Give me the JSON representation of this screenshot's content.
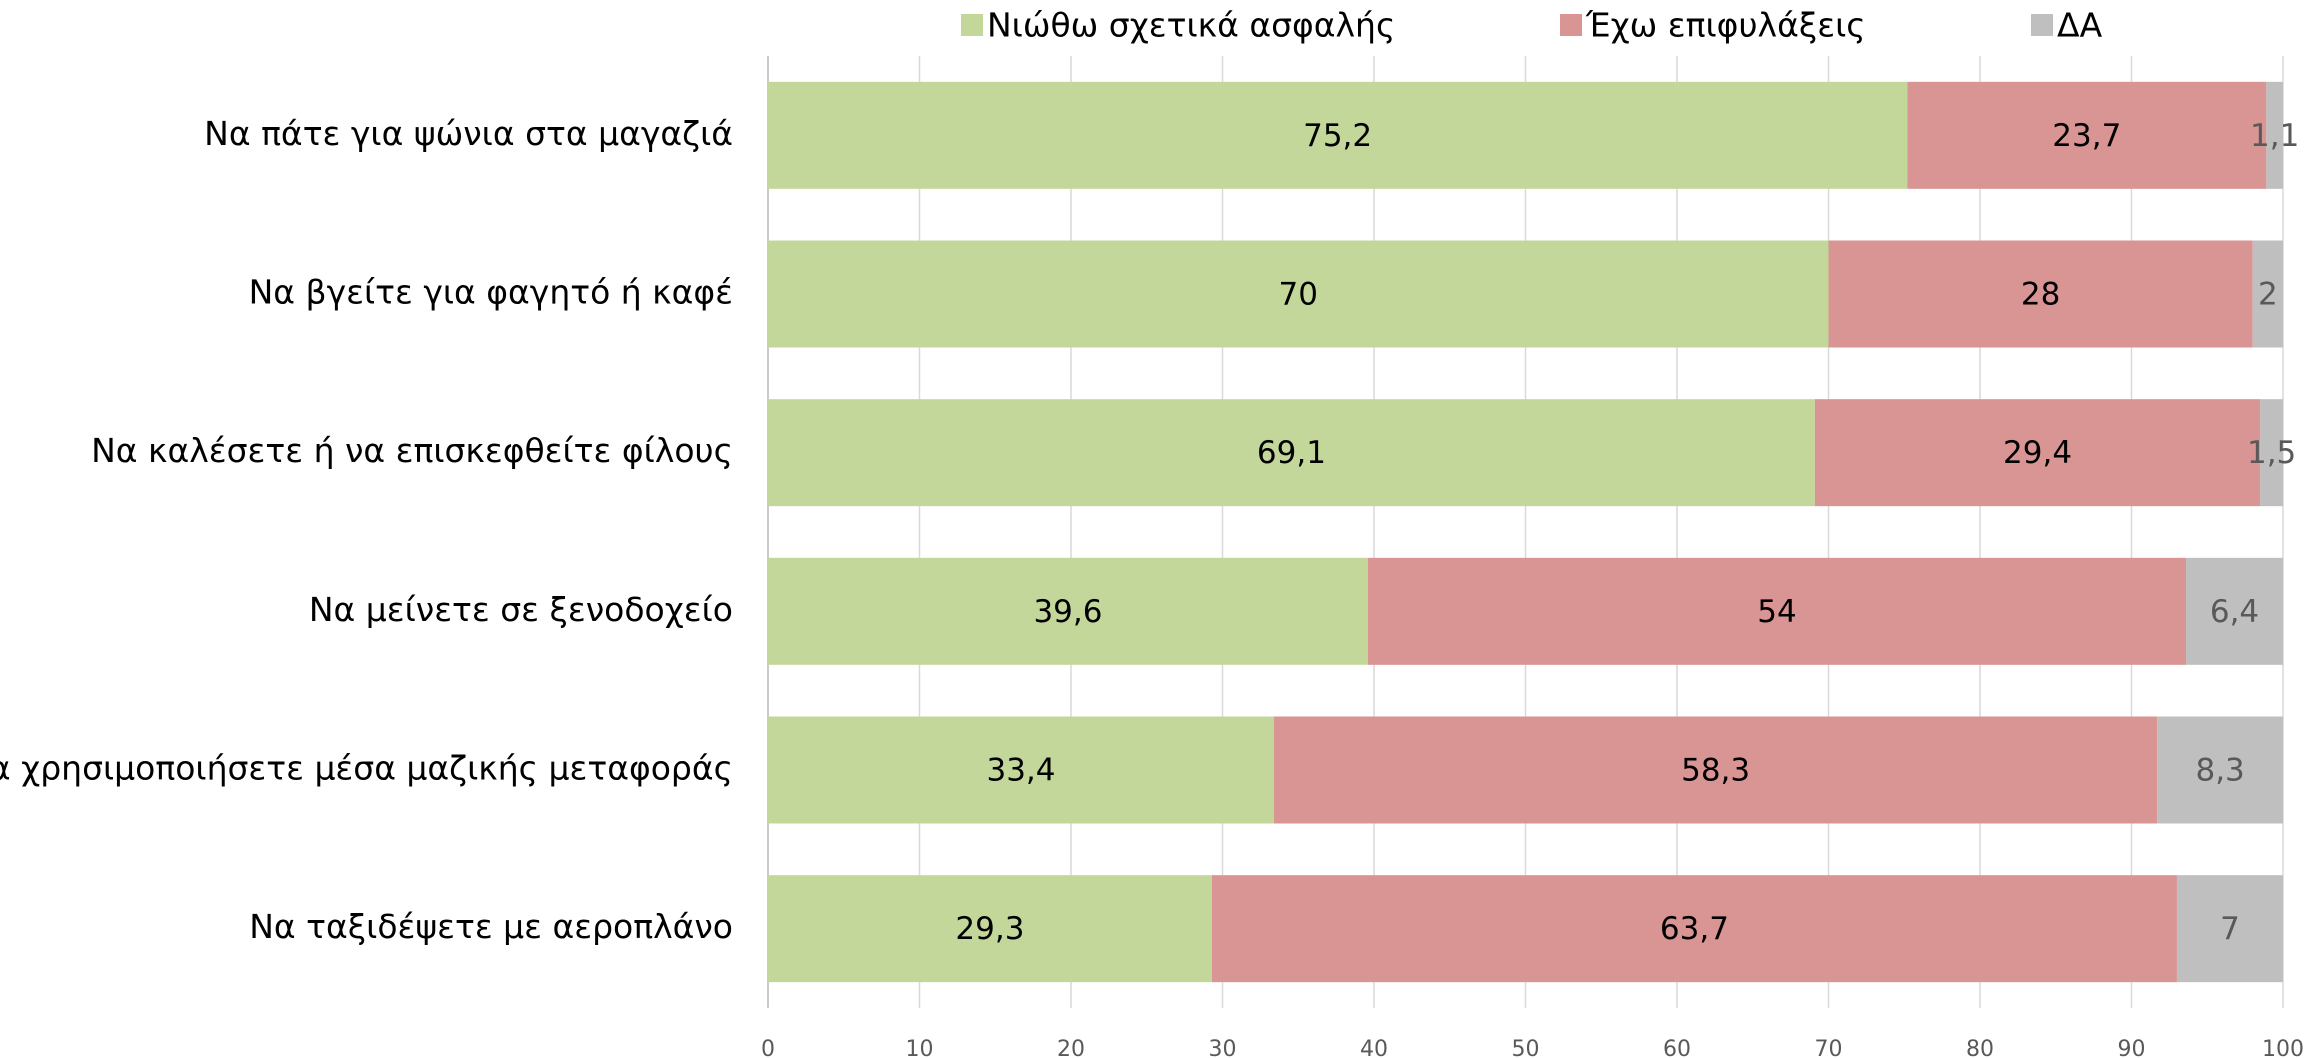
{
  "chart_data": {
    "type": "stacked_barh",
    "categories": [
      "Να πάτε για ψώνια στα μαγαζιά",
      "Να βγείτε για φαγητό ή καφέ",
      "Να καλέσετε ή να επισκεφθείτε φίλους",
      "Να μείνετε σε ξενοδοχείο",
      "Να χρησιμοποιήσετε μέσα μαζικής μεταφοράς",
      "Να ταξιδέψετε με αεροπλάνο"
    ],
    "series": [
      {
        "name": "Νιώθω σχετικά ασφαλής",
        "color": "#c4d79b",
        "label_color": "#000000",
        "values": [
          75.2,
          70,
          69.1,
          39.6,
          33.4,
          29.3
        ],
        "value_labels": [
          "75,2",
          "70",
          "69,1",
          "39,6",
          "33,4",
          "29,3"
        ]
      },
      {
        "name": "Έχω επιφυλάξεις",
        "color": "#d99594",
        "label_color": "#000000",
        "values": [
          23.7,
          28,
          29.4,
          54,
          58.3,
          63.7
        ],
        "value_labels": [
          "23,7",
          "28",
          "29,4",
          "54",
          "58,3",
          "63,7"
        ]
      },
      {
        "name": "ΔΑ",
        "color": "#bfbfbf",
        "label_color": "#595959",
        "values": [
          1.1,
          2,
          1.5,
          6.4,
          8.3,
          7
        ],
        "value_labels": [
          "1,1",
          "2",
          "1,5",
          "6,4",
          "8,3",
          "7"
        ]
      }
    ],
    "xlim": [
      0,
      100
    ],
    "xticks": [
      0,
      10,
      20,
      30,
      40,
      50,
      60,
      70,
      80,
      90,
      100
    ],
    "grid": true,
    "legend": "top"
  }
}
